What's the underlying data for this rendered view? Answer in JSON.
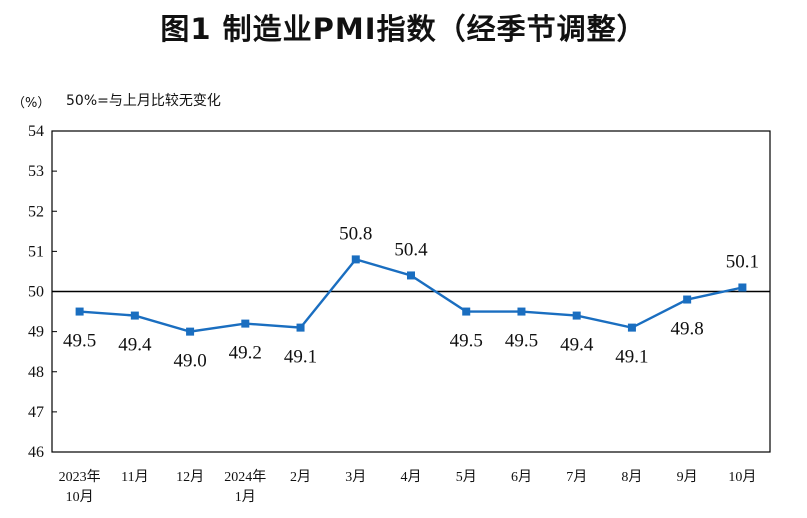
{
  "title": "图1  制造业PMI指数（经季节调整）",
  "unit": "（%）",
  "note": "50%=与上月比较无变化",
  "chart_data": {
    "type": "line",
    "title": "图1  制造业PMI指数（经季节调整）",
    "ylabel": "（%）",
    "ylim": [
      46,
      54
    ],
    "yticks": [
      46,
      47,
      48,
      49,
      50,
      51,
      52,
      53,
      54
    ],
    "reference_line": 50,
    "categories": [
      [
        "2023年",
        "10月"
      ],
      [
        "11月"
      ],
      [
        "12月"
      ],
      [
        "2024年",
        "1月"
      ],
      [
        "2月"
      ],
      [
        "3月"
      ],
      [
        "4月"
      ],
      [
        "5月"
      ],
      [
        "6月"
      ],
      [
        "7月"
      ],
      [
        "8月"
      ],
      [
        "9月"
      ],
      [
        "10月"
      ]
    ],
    "values": [
      49.5,
      49.4,
      49.0,
      49.2,
      49.1,
      50.8,
      50.4,
      49.5,
      49.5,
      49.4,
      49.1,
      49.8,
      50.1
    ],
    "data_labels": [
      "49.5",
      "49.4",
      "49.0",
      "49.2",
      "49.1",
      "50.8",
      "50.4",
      "49.5",
      "49.5",
      "49.4",
      "49.1",
      "49.8",
      "50.1"
    ],
    "label_position": [
      "below",
      "below",
      "below",
      "below",
      "below",
      "above",
      "above",
      "below",
      "below",
      "below",
      "below",
      "below",
      "above"
    ],
    "colors": {
      "line": "#1a6ec0",
      "reference": "#000000",
      "frame": "#000000"
    },
    "grid": false,
    "legend": "none"
  }
}
